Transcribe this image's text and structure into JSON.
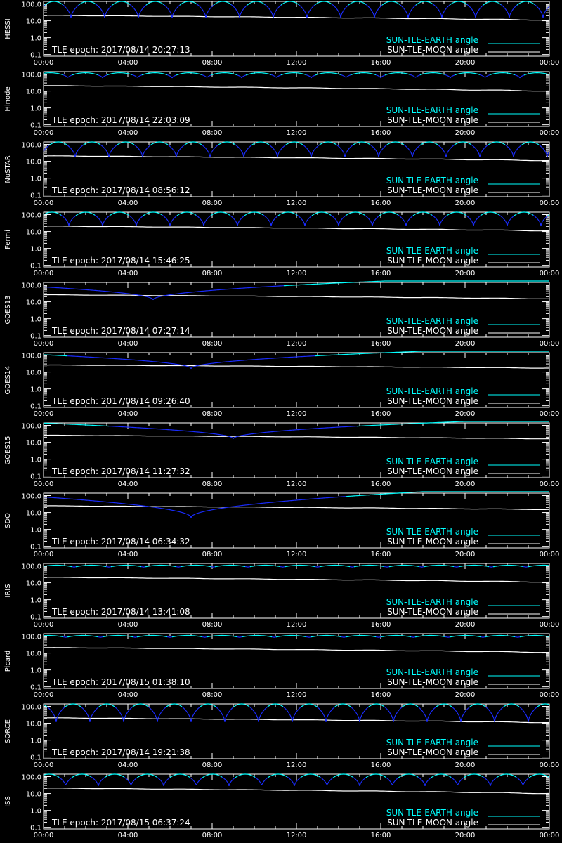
{
  "colors": {
    "background": "#000000",
    "axes": "#ffffff",
    "earth_dark": "#1a2cff",
    "earth_light": "#00ffff",
    "moon": "#ffffff"
  },
  "legend": {
    "earth_label": "SUN-TLE-EARTH angle",
    "moon_label": "SUN-TLE-MOON angle"
  },
  "chart_data": [
    {
      "type": "line",
      "name": "HESSI",
      "epoch_text": "TLE epoch: 2017/08/14 20:27:13",
      "x": [
        "00:00",
        "04:00",
        "08:00",
        "12:00",
        "16:00",
        "20:00",
        "00:00"
      ],
      "y_ticks": [
        "100.0",
        "10.0",
        "1.0",
        "0.1"
      ],
      "ylim": [
        0.08,
        140
      ],
      "yscale": "log",
      "earth_kind": "arcs",
      "earth_period_h": 1.6,
      "earth_phase_h": 0.3,
      "earth_min": 15,
      "earth_max": 140,
      "moon_start": 21,
      "moon_end": 11
    },
    {
      "type": "line",
      "name": "Hinode",
      "epoch_text": "TLE epoch: 2017/08/14 22:03:09",
      "x": [
        "00:00",
        "04:00",
        "08:00",
        "12:00",
        "16:00",
        "20:00",
        "00:00"
      ],
      "y_ticks": [
        "100.0",
        "10.0",
        "1.0",
        "0.1"
      ],
      "ylim": [
        0.08,
        140
      ],
      "yscale": "log",
      "earth_kind": "arcs",
      "earth_period_h": 1.65,
      "earth_phase_h": 0.5,
      "earth_min": 60,
      "earth_max": 120,
      "moon_start": 21,
      "moon_end": 10
    },
    {
      "type": "line",
      "name": "NuSTAR",
      "epoch_text": "TLE epoch: 2017/08/14 08:56:12",
      "x": [
        "00:00",
        "04:00",
        "08:00",
        "12:00",
        "16:00",
        "20:00",
        "00:00"
      ],
      "y_ticks": [
        "100.0",
        "10.0",
        "1.0",
        "0.1"
      ],
      "ylim": [
        0.08,
        140
      ],
      "yscale": "log",
      "earth_kind": "arcs",
      "earth_period_h": 1.6,
      "earth_phase_h": 0.1,
      "earth_min": 18,
      "earth_max": 140,
      "moon_start": 21,
      "moon_end": 11
    },
    {
      "type": "line",
      "name": "Fermi",
      "epoch_text": "TLE epoch: 2017/08/14 15:46:25",
      "x": [
        "00:00",
        "04:00",
        "08:00",
        "12:00",
        "16:00",
        "20:00",
        "00:00"
      ],
      "y_ticks": [
        "100.0",
        "10.0",
        "1.0",
        "0.1"
      ],
      "ylim": [
        0.08,
        140
      ],
      "yscale": "log",
      "earth_kind": "arcs",
      "earth_period_h": 1.6,
      "earth_phase_h": 0.4,
      "earth_min": 22,
      "earth_max": 140,
      "moon_start": 21,
      "moon_end": 11
    },
    {
      "type": "line",
      "name": "GOES13",
      "epoch_text": "TLE epoch: 2017/08/14 07:27:14",
      "x": [
        "00:00",
        "04:00",
        "08:00",
        "12:00",
        "16:00",
        "20:00",
        "00:00"
      ],
      "y_ticks": [
        "100.0",
        "10.0",
        "1.0",
        "0.1"
      ],
      "ylim": [
        0.08,
        140
      ],
      "yscale": "log",
      "earth_kind": "geo",
      "earth_min_time_h": 5.2,
      "earth_min": 13,
      "earth_max": 170,
      "moon_start": 26,
      "moon_end": 15
    },
    {
      "type": "line",
      "name": "GOES14",
      "epoch_text": "TLE epoch: 2017/08/14 09:26:40",
      "x": [
        "00:00",
        "04:00",
        "08:00",
        "12:00",
        "16:00",
        "20:00",
        "00:00"
      ],
      "y_ticks": [
        "100.0",
        "10.0",
        "1.0",
        "0.1"
      ],
      "ylim": [
        0.08,
        140
      ],
      "yscale": "log",
      "earth_kind": "geo",
      "earth_min_time_h": 7.0,
      "earth_min": 16,
      "earth_max": 170,
      "moon_start": 26,
      "moon_end": 17
    },
    {
      "type": "line",
      "name": "GOES15",
      "epoch_text": "TLE epoch: 2017/08/14 11:27:32",
      "x": [
        "00:00",
        "04:00",
        "08:00",
        "12:00",
        "16:00",
        "20:00",
        "00:00"
      ],
      "y_ticks": [
        "100.0",
        "10.0",
        "1.0",
        "0.1"
      ],
      "ylim": [
        0.08,
        140
      ],
      "yscale": "log",
      "earth_kind": "geo",
      "earth_min_time_h": 9.0,
      "earth_min": 16,
      "earth_max": 170,
      "moon_start": 26,
      "moon_end": 16
    },
    {
      "type": "line",
      "name": "SDO",
      "epoch_text": "TLE epoch: 2017/08/14 06:34:32",
      "x": [
        "00:00",
        "04:00",
        "08:00",
        "12:00",
        "16:00",
        "20:00",
        "00:00"
      ],
      "y_ticks": [
        "100.0",
        "10.0",
        "1.0",
        "0.1"
      ],
      "ylim": [
        0.08,
        140
      ],
      "yscale": "log",
      "earth_kind": "geo",
      "earth_min_time_h": 7.0,
      "earth_min": 5,
      "earth_max": 170,
      "moon_start": 25,
      "moon_end": 15
    },
    {
      "type": "line",
      "name": "IRIS",
      "epoch_text": "TLE epoch: 2017/08/14 13:41:08",
      "x": [
        "00:00",
        "04:00",
        "08:00",
        "12:00",
        "16:00",
        "20:00",
        "00:00"
      ],
      "y_ticks": [
        "100.0",
        "10.0",
        "1.0",
        "0.1"
      ],
      "ylim": [
        0.08,
        140
      ],
      "yscale": "log",
      "earth_kind": "flat",
      "earth_period_h": 1.65,
      "earth_phase_h": 0.2,
      "earth_min": 85,
      "earth_max": 110,
      "moon_start": 21,
      "moon_end": 11
    },
    {
      "type": "line",
      "name": "Picard",
      "epoch_text": "TLE epoch: 2017/08/15 01:38:10",
      "x": [
        "00:00",
        "04:00",
        "08:00",
        "12:00",
        "16:00",
        "20:00",
        "00:00"
      ],
      "y_ticks": [
        "100.0",
        "10.0",
        "1.0",
        "0.1"
      ],
      "ylim": [
        0.08,
        140
      ],
      "yscale": "log",
      "earth_kind": "flat",
      "earth_period_h": 1.65,
      "earth_phase_h": 0.6,
      "earth_min": 85,
      "earth_max": 110,
      "moon_start": 21,
      "moon_end": 11
    },
    {
      "type": "line",
      "name": "SORCE",
      "epoch_text": "TLE epoch: 2017/08/14 19:21:38",
      "x": [
        "00:00",
        "04:00",
        "08:00",
        "12:00",
        "16:00",
        "20:00",
        "00:00"
      ],
      "y_ticks": [
        "100.0",
        "10.0",
        "1.0",
        "0.1"
      ],
      "ylim": [
        0.08,
        140
      ],
      "yscale": "log",
      "earth_kind": "arcs",
      "earth_period_h": 1.6,
      "earth_phase_h": 1.0,
      "earth_min": 12,
      "earth_max": 140,
      "moon_start": 21,
      "moon_end": 11
    },
    {
      "type": "line",
      "name": "ISS",
      "epoch_text": "TLE epoch: 2017/08/15 06:37:24",
      "x": [
        "00:00",
        "04:00",
        "08:00",
        "12:00",
        "16:00",
        "20:00",
        "00:00"
      ],
      "y_ticks": [
        "100.0",
        "10.0",
        "1.0",
        "0.1"
      ],
      "ylim": [
        0.08,
        140
      ],
      "yscale": "log",
      "earth_kind": "arcs",
      "earth_period_h": 1.55,
      "earth_phase_h": 0.5,
      "earth_min": 28,
      "earth_max": 140,
      "moon_start": 21,
      "moon_end": 10
    }
  ]
}
